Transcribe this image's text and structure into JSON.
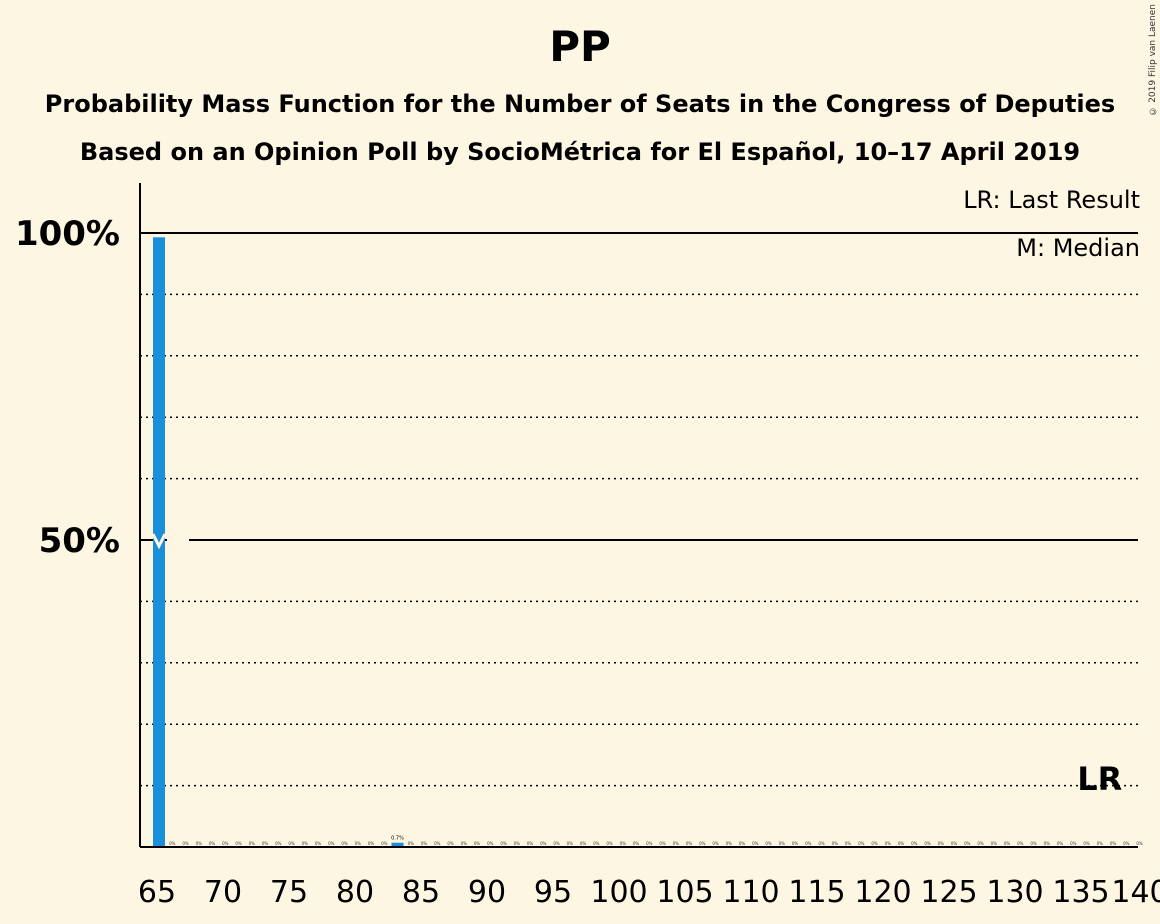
{
  "header": {
    "title": "PP",
    "subtitle1": "Probability Mass Function for the Number of Seats in the Congress of Deputies",
    "subtitle2": "Based on an Opinion Poll by SocioMétrica for El Español, 10–17 April 2019",
    "copyright": "© 2019 Filip van Laenen"
  },
  "legend": {
    "last_result": "LR: Last Result",
    "median": "M: Median"
  },
  "colors": {
    "background": "#fdf6e3",
    "bar": "#1a8fdc",
    "text": "#000000"
  },
  "chart_data": {
    "type": "bar",
    "x_ticks": [
      65,
      70,
      75,
      80,
      85,
      90,
      95,
      100,
      105,
      110,
      115,
      120,
      125,
      130,
      135,
      140
    ],
    "y_ticks": [
      {
        "value": 50,
        "label": "50%"
      },
      {
        "value": 100,
        "label": "100%"
      }
    ],
    "xlim": [
      65,
      140
    ],
    "ylim": [
      0,
      100
    ],
    "bars": [
      {
        "seats": 66,
        "probability": 99.3
      },
      {
        "seats": 84,
        "probability": 0.7,
        "label": "0.7%"
      }
    ],
    "median": {
      "seats": 66,
      "marker": "M"
    },
    "last_result": {
      "seats": 137,
      "label": "LR"
    },
    "grid": "dotted every 10%, solid at 50% and 100%"
  }
}
